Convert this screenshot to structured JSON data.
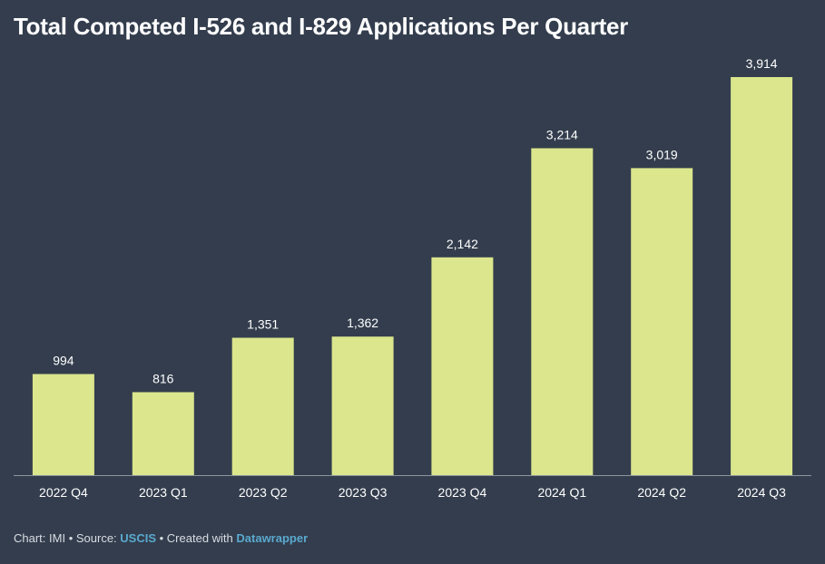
{
  "title": "Total Competed I-526 and I-829 Applications Per Quarter",
  "footer": {
    "chart_prefix": "Chart: IMI",
    "sep1": " • ",
    "source_prefix": "Source: ",
    "source_link": "USCIS",
    "sep2": " • ",
    "created_prefix": "Created with ",
    "created_link": "Datawrapper"
  },
  "colors": {
    "background": "#333d4d",
    "bar": "#dbe68d",
    "axis": "#8d949e",
    "label": "#ffffff",
    "link": "#5aa9cf"
  },
  "chart_data": {
    "type": "bar",
    "categories": [
      "2022 Q4",
      "2023 Q1",
      "2023 Q2",
      "2023 Q3",
      "2023 Q4",
      "2024 Q1",
      "2024 Q2",
      "2024 Q3"
    ],
    "values": [
      994,
      816,
      1351,
      1362,
      2142,
      3214,
      3019,
      3914
    ],
    "value_labels": [
      "994",
      "816",
      "1,351",
      "1,362",
      "2,142",
      "3,214",
      "3,019",
      "3,914"
    ],
    "ylim": [
      0,
      3914
    ],
    "grid": false,
    "legend": "none"
  }
}
